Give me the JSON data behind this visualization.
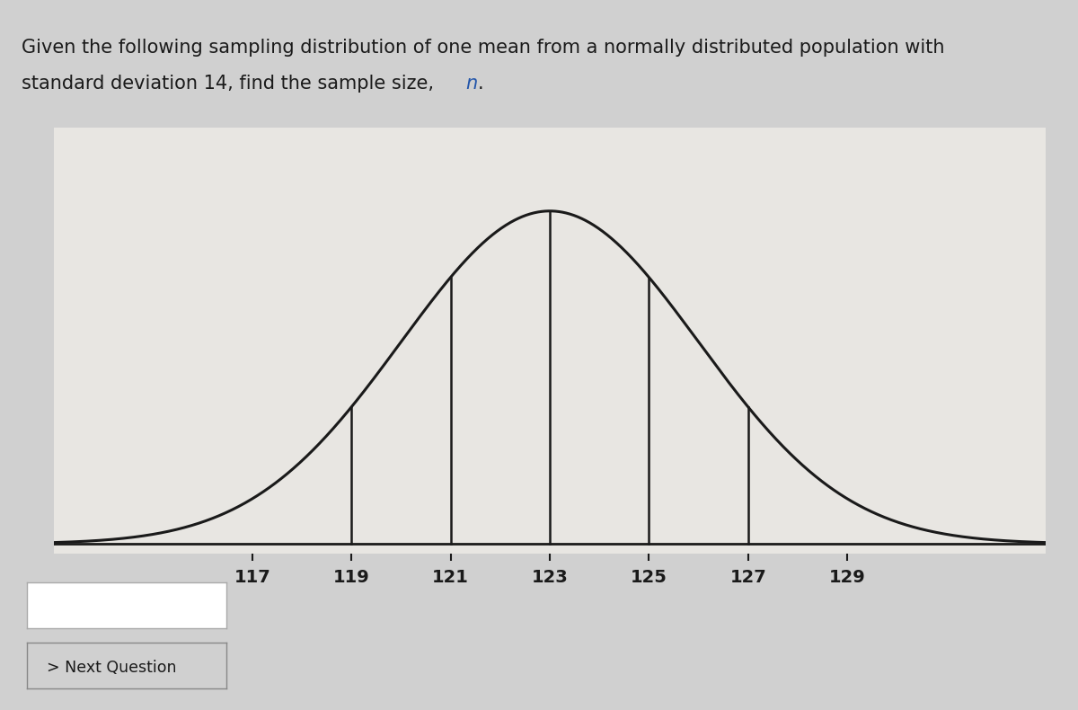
{
  "title_line1": "Given the following sampling distribution of one mean from a normally distributed population with",
  "title_line2_before_italic": "standard deviation 14, find the sample size, ",
  "title_italic": "n",
  "title_line2_end": ".",
  "mean": 123,
  "std": 3,
  "x_min": 113,
  "x_max": 133,
  "x_ticks": [
    117,
    119,
    121,
    123,
    125,
    127,
    129
  ],
  "vertical_lines": [
    119,
    121,
    123,
    125,
    127
  ],
  "outer_bg": "#d0d0d0",
  "inner_bg": "#e8e6e2",
  "curve_color": "#1a1a1a",
  "line_color": "#1a1a1a",
  "text_color": "#1a1a1a",
  "title_color_normal": "#1a1a1a",
  "title_color_italic": "#2255aa",
  "tick_fontsize": 14,
  "title_fontsize": 15,
  "next_question_text": "> Next Question",
  "baseline_linewidth": 2.0,
  "curve_linewidth": 2.2,
  "vline_linewidth": 1.8
}
